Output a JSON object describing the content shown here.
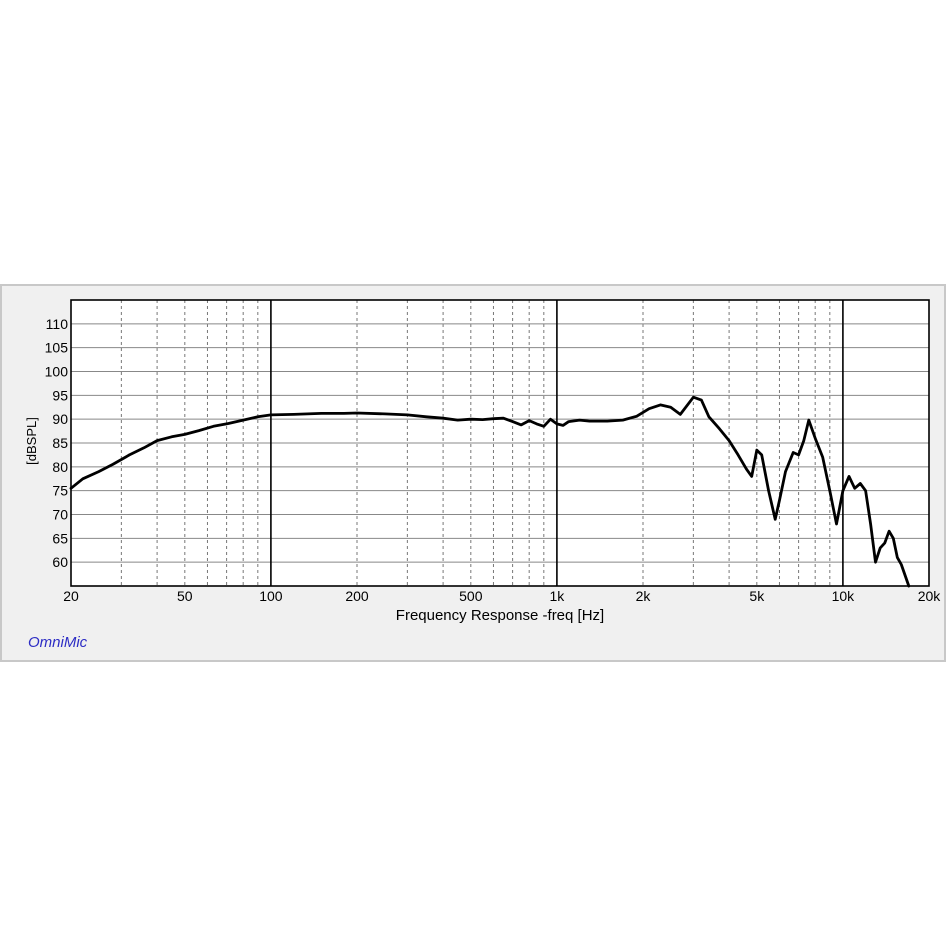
{
  "brand": "OmniMic",
  "chart_data": {
    "type": "line",
    "title": "",
    "xlabel": "Frequency Response -freq [Hz]",
    "ylabel": "[dBSPL]",
    "xscale": "log",
    "xlim": [
      20,
      20000
    ],
    "ylim": [
      55,
      115
    ],
    "grid": true,
    "x_ticks": [
      {
        "value": 20,
        "label": "20"
      },
      {
        "value": 50,
        "label": "50"
      },
      {
        "value": 100,
        "label": "100"
      },
      {
        "value": 200,
        "label": "200"
      },
      {
        "value": 500,
        "label": "500"
      },
      {
        "value": 1000,
        "label": "1k"
      },
      {
        "value": 2000,
        "label": "2k"
      },
      {
        "value": 5000,
        "label": "5k"
      },
      {
        "value": 10000,
        "label": "10k"
      },
      {
        "value": 20000,
        "label": "20k"
      }
    ],
    "y_ticks": [
      60,
      65,
      70,
      75,
      80,
      85,
      90,
      95,
      100,
      105,
      110
    ],
    "series": [
      {
        "color": "#000000",
        "x": [
          20,
          22,
          25,
          28,
          32,
          36,
          40,
          45,
          50,
          56,
          63,
          71,
          80,
          90,
          100,
          120,
          150,
          180,
          200,
          250,
          300,
          350,
          400,
          450,
          500,
          550,
          600,
          650,
          700,
          750,
          800,
          850,
          900,
          950,
          1000,
          1050,
          1100,
          1200,
          1300,
          1500,
          1700,
          1900,
          2100,
          2300,
          2500,
          2700,
          3000,
          3200,
          3400,
          3700,
          4000,
          4300,
          4600,
          4800,
          5000,
          5200,
          5500,
          5800,
          6000,
          6300,
          6700,
          7000,
          7300,
          7600,
          8000,
          8500,
          9000,
          9500,
          10000,
          10500,
          11000,
          11500,
          12000,
          12500,
          13000,
          13500,
          14000,
          14500,
          15000,
          15500,
          16000,
          17000
        ],
        "y": [
          75.5,
          77.5,
          79,
          80.5,
          82.5,
          84,
          85.5,
          86.3,
          86.8,
          87.6,
          88.5,
          89.1,
          89.8,
          90.5,
          90.9,
          91.0,
          91.2,
          91.2,
          91.3,
          91.1,
          90.9,
          90.5,
          90.2,
          89.8,
          90.0,
          89.9,
          90.1,
          90.2,
          89.5,
          88.8,
          89.7,
          89.0,
          88.5,
          90.0,
          89.0,
          88.7,
          89.5,
          89.8,
          89.6,
          89.6,
          89.8,
          90.6,
          92.2,
          93.0,
          92.5,
          91.0,
          94.6,
          94.0,
          90.5,
          88.0,
          85.5,
          82.5,
          79.5,
          78.0,
          83.5,
          82.5,
          75.0,
          69.0,
          73.0,
          79.0,
          83.0,
          82.5,
          85.5,
          89.8,
          86.0,
          82.0,
          75.0,
          68.0,
          75.0,
          78.0,
          75.5,
          76.5,
          75.0,
          68.0,
          60.0,
          63.0,
          64.0,
          66.5,
          65.0,
          61.0,
          59.5,
          55.0
        ]
      }
    ]
  }
}
